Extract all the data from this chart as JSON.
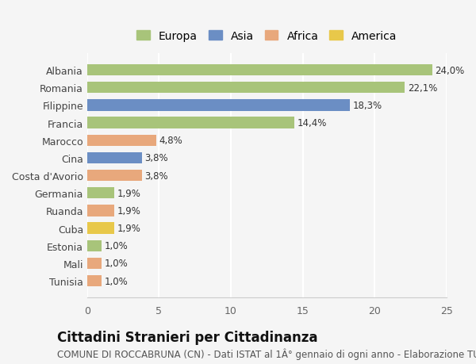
{
  "countries": [
    "Tunisia",
    "Mali",
    "Estonia",
    "Cuba",
    "Ruanda",
    "Germania",
    "Costa d'Avorio",
    "Cina",
    "Marocco",
    "Francia",
    "Filippine",
    "Romania",
    "Albania"
  ],
  "values": [
    1.0,
    1.0,
    1.0,
    1.9,
    1.9,
    1.9,
    3.8,
    3.8,
    4.8,
    14.4,
    18.3,
    22.1,
    24.0
  ],
  "labels": [
    "1,0%",
    "1,0%",
    "1,0%",
    "1,9%",
    "1,9%",
    "1,9%",
    "3,8%",
    "3,8%",
    "4,8%",
    "14,4%",
    "18,3%",
    "22,1%",
    "24,0%"
  ],
  "colors": [
    "#e8a87c",
    "#e8a87c",
    "#a8c47a",
    "#e8c84a",
    "#e8a87c",
    "#a8c47a",
    "#e8a87c",
    "#6b8ec4",
    "#e8a87c",
    "#a8c47a",
    "#6b8ec4",
    "#a8c47a",
    "#a8c47a"
  ],
  "legend_labels": [
    "Europa",
    "Asia",
    "Africa",
    "America"
  ],
  "legend_colors": [
    "#a8c47a",
    "#6b8ec4",
    "#e8a87c",
    "#e8c84a"
  ],
  "title": "Cittadini Stranieri per Cittadinanza",
  "subtitle": "COMUNE DI ROCCABRUNA (CN) - Dati ISTAT al 1° gennaio di ogni anno - Elaborazione TUTTITALIA.IT",
  "xlim": [
    0,
    25
  ],
  "xticks": [
    0,
    5,
    10,
    15,
    20,
    25
  ],
  "background_color": "#f5f5f5",
  "bar_height": 0.65,
  "title_fontsize": 12,
  "subtitle_fontsize": 8.5,
  "label_fontsize": 8.5,
  "tick_fontsize": 9,
  "legend_fontsize": 10
}
